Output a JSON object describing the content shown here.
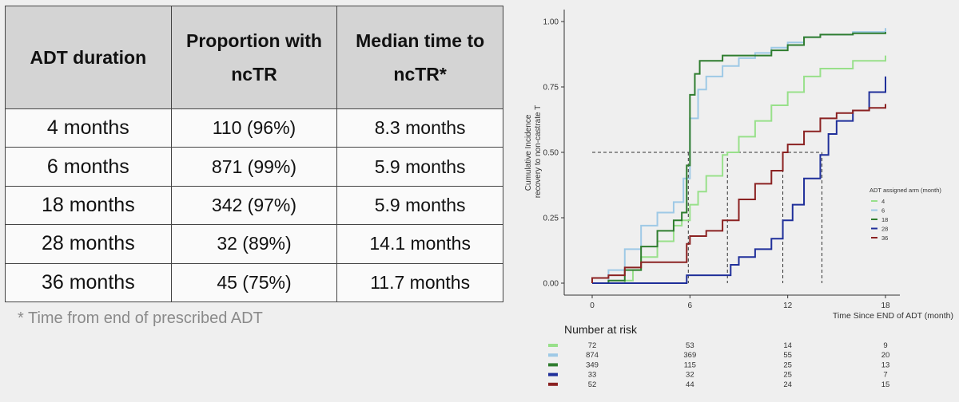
{
  "table": {
    "headers": [
      [
        "ADT duration"
      ],
      [
        "Proportion with",
        "ncTR"
      ],
      [
        "Median time to",
        "ncTR*"
      ]
    ],
    "rows": [
      [
        "4 months",
        "110 (96%)",
        "8.3 months"
      ],
      [
        "6 months",
        "871 (99%)",
        "5.9 months"
      ],
      [
        "18 months",
        "342 (97%)",
        "5.9 months"
      ],
      [
        "28 months",
        "32 (89%)",
        "14.1 months"
      ],
      [
        "36 months",
        "45 (75%)",
        "11.7 months"
      ]
    ]
  },
  "footnote": "* Time from end of prescribed ADT",
  "chart_data": {
    "type": "line",
    "step": true,
    "xlabel": "Time Since END of ADT (month)",
    "ylabel": [
      "Cumulative Incidence",
      "recovery to non-castrate T"
    ],
    "xlim": [
      0,
      18
    ],
    "ylim": [
      0,
      1
    ],
    "xticks": [
      0,
      6,
      12,
      18
    ],
    "yticks": [
      0,
      0.25,
      0.5,
      0.75,
      1
    ],
    "ytick_labels": [
      "0.00",
      "0.25",
      "0.50",
      "0.75",
      "1.00"
    ],
    "grid": false,
    "legend": {
      "title": "ADT assigned arm (month)",
      "placement": "right"
    },
    "median_reference": {
      "y": 0.5,
      "x_values": [
        5.9,
        8.3,
        11.7,
        14.1
      ]
    },
    "series": [
      {
        "name": "4",
        "color": "#98e08a",
        "points": [
          [
            0,
            0
          ],
          [
            2,
            0.01
          ],
          [
            2.5,
            0.05
          ],
          [
            3,
            0.1
          ],
          [
            4,
            0.16
          ],
          [
            5,
            0.22
          ],
          [
            5.5,
            0.24
          ],
          [
            6,
            0.3
          ],
          [
            6.5,
            0.35
          ],
          [
            7,
            0.41
          ],
          [
            8,
            0.49
          ],
          [
            8.3,
            0.5
          ],
          [
            9,
            0.56
          ],
          [
            10,
            0.62
          ],
          [
            11,
            0.68
          ],
          [
            12,
            0.73
          ],
          [
            13,
            0.79
          ],
          [
            14,
            0.82
          ],
          [
            15,
            0.82
          ],
          [
            16,
            0.85
          ],
          [
            17,
            0.85
          ],
          [
            18,
            0.87
          ]
        ]
      },
      {
        "name": "6",
        "color": "#9ec9e6",
        "points": [
          [
            0,
            0
          ],
          [
            1,
            0.05
          ],
          [
            2,
            0.13
          ],
          [
            3,
            0.22
          ],
          [
            4,
            0.27
          ],
          [
            5,
            0.31
          ],
          [
            5.6,
            0.4
          ],
          [
            6,
            0.63
          ],
          [
            6.5,
            0.74
          ],
          [
            7,
            0.79
          ],
          [
            8,
            0.83
          ],
          [
            9,
            0.86
          ],
          [
            10,
            0.88
          ],
          [
            11,
            0.9
          ],
          [
            12,
            0.92
          ],
          [
            13,
            0.94
          ],
          [
            14,
            0.95
          ],
          [
            16,
            0.96
          ],
          [
            18,
            0.975
          ]
        ]
      },
      {
        "name": "18",
        "color": "#2f7d2f",
        "points": [
          [
            0,
            0
          ],
          [
            1,
            0.01
          ],
          [
            2,
            0.05
          ],
          [
            3,
            0.14
          ],
          [
            4,
            0.2
          ],
          [
            5,
            0.24
          ],
          [
            5.5,
            0.27
          ],
          [
            5.8,
            0.45
          ],
          [
            6,
            0.72
          ],
          [
            6.3,
            0.8
          ],
          [
            6.6,
            0.85
          ],
          [
            8,
            0.87
          ],
          [
            10,
            0.87
          ],
          [
            11,
            0.89
          ],
          [
            12,
            0.91
          ],
          [
            13,
            0.94
          ],
          [
            14,
            0.95
          ],
          [
            16,
            0.955
          ],
          [
            18,
            0.96
          ]
        ]
      },
      {
        "name": "28",
        "color": "#1f2f9a",
        "points": [
          [
            0,
            0
          ],
          [
            5.5,
            0
          ],
          [
            5.8,
            0.03
          ],
          [
            8,
            0.03
          ],
          [
            8.5,
            0.07
          ],
          [
            9,
            0.1
          ],
          [
            10,
            0.13
          ],
          [
            11,
            0.17
          ],
          [
            11.7,
            0.24
          ],
          [
            12.3,
            0.3
          ],
          [
            13,
            0.4
          ],
          [
            14,
            0.49
          ],
          [
            14.5,
            0.57
          ],
          [
            15,
            0.62
          ],
          [
            16,
            0.66
          ],
          [
            17,
            0.73
          ],
          [
            18,
            0.79
          ]
        ]
      },
      {
        "name": "36",
        "color": "#8b2222",
        "points": [
          [
            0,
            0
          ],
          [
            0,
            0.02
          ],
          [
            1,
            0.03
          ],
          [
            2,
            0.06
          ],
          [
            3,
            0.08
          ],
          [
            5,
            0.08
          ],
          [
            5.8,
            0.15
          ],
          [
            6,
            0.18
          ],
          [
            7,
            0.2
          ],
          [
            8,
            0.24
          ],
          [
            9,
            0.32
          ],
          [
            10,
            0.38
          ],
          [
            11,
            0.43
          ],
          [
            11.7,
            0.5
          ],
          [
            12,
            0.53
          ],
          [
            13,
            0.58
          ],
          [
            14,
            0.63
          ],
          [
            15,
            0.65
          ],
          [
            16,
            0.66
          ],
          [
            17,
            0.67
          ],
          [
            18,
            0.685
          ]
        ]
      }
    ],
    "risk_table": {
      "title": "Number at risk",
      "times": [
        0,
        6,
        12,
        18
      ],
      "rows": [
        {
          "name": "4",
          "counts": [
            "72",
            "53",
            "14",
            "9"
          ]
        },
        {
          "name": "6",
          "counts": [
            "874",
            "369",
            "55",
            "20"
          ]
        },
        {
          "name": "18",
          "counts": [
            "349",
            "115",
            "25",
            "13"
          ]
        },
        {
          "name": "28",
          "counts": [
            "33",
            "32",
            "25",
            "7"
          ]
        },
        {
          "name": "36",
          "counts": [
            "52",
            "44",
            "24",
            "15"
          ]
        }
      ]
    }
  }
}
